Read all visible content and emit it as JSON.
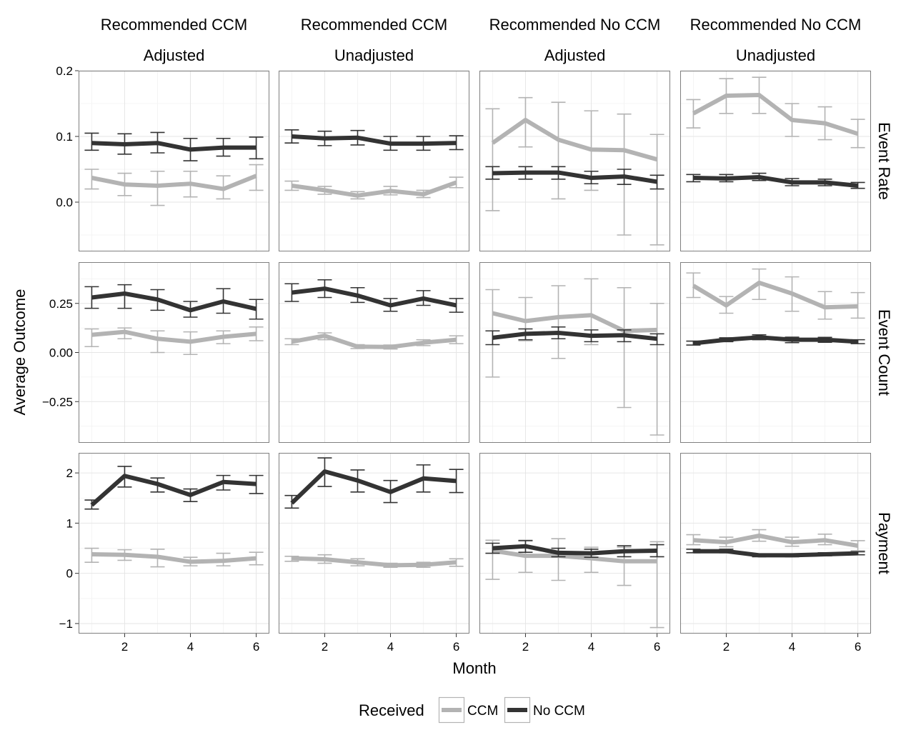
{
  "chart_data": {
    "type": "line",
    "title": "",
    "xlabel": "Month",
    "ylabel": "Average Outcome",
    "x_ticks": [
      2,
      4,
      6
    ],
    "xlim": [
      0.6,
      6.4
    ],
    "grid": true,
    "legend": {
      "title": "Received",
      "position": "bottom",
      "entries": [
        {
          "name": "CCM",
          "color": "#b3b3b3"
        },
        {
          "name": "No CCM",
          "color": "#333333"
        }
      ]
    },
    "columns": [
      {
        "top": "Recommended CCM",
        "bottom": "Adjusted"
      },
      {
        "top": "Recommended CCM",
        "bottom": "Unadjusted"
      },
      {
        "top": "Recommended No CCM",
        "bottom": "Adjusted"
      },
      {
        "top": "Recommended No CCM",
        "bottom": "Unadjusted"
      }
    ],
    "rows": [
      {
        "label": "Event Rate",
        "ylim": [
          -0.075,
          0.2
        ],
        "y_ticks": [
          0.0,
          0.1,
          0.2
        ],
        "y_tick_labels": [
          "0.0",
          "0.1",
          "0.2"
        ]
      },
      {
        "label": "Event Count",
        "ylim": [
          -0.46,
          0.46
        ],
        "y_ticks": [
          -0.25,
          0.0,
          0.25
        ],
        "y_tick_labels": [
          "−0.25",
          "0.00",
          "0.25"
        ]
      },
      {
        "label": "Payment",
        "ylim": [
          -1.2,
          2.4
        ],
        "y_ticks": [
          -1,
          0,
          1,
          2
        ],
        "y_tick_labels": [
          "−1",
          "0",
          "1",
          "2"
        ]
      }
    ],
    "panels": [
      [
        {
          "series": [
            {
              "name": "CCM",
              "x": [
                1,
                2,
                3,
                4,
                5,
                6
              ],
              "y": [
                0.037,
                0.027,
                0.025,
                0.028,
                0.02,
                0.04
              ],
              "lower": [
                0.02,
                0.01,
                -0.005,
                0.008,
                0.005,
                0.018
              ],
              "upper": [
                0.05,
                0.044,
                0.047,
                0.047,
                0.04,
                0.057
              ]
            },
            {
              "name": "No CCM",
              "x": [
                1,
                2,
                3,
                4,
                5,
                6
              ],
              "y": [
                0.09,
                0.088,
                0.09,
                0.08,
                0.083,
                0.083
              ],
              "lower": [
                0.079,
                0.073,
                0.075,
                0.063,
                0.07,
                0.066
              ],
              "upper": [
                0.105,
                0.104,
                0.106,
                0.097,
                0.097,
                0.099
              ]
            }
          ]
        },
        {
          "series": [
            {
              "name": "CCM",
              "x": [
                1,
                2,
                3,
                4,
                5,
                6
              ],
              "y": [
                0.025,
                0.018,
                0.01,
                0.017,
                0.012,
                0.03
              ],
              "lower": [
                0.018,
                0.012,
                0.005,
                0.011,
                0.007,
                0.022
              ],
              "upper": [
                0.032,
                0.024,
                0.016,
                0.024,
                0.018,
                0.038
              ]
            },
            {
              "name": "No CCM",
              "x": [
                1,
                2,
                3,
                4,
                5,
                6
              ],
              "y": [
                0.1,
                0.097,
                0.098,
                0.089,
                0.089,
                0.09
              ],
              "lower": [
                0.09,
                0.086,
                0.087,
                0.079,
                0.079,
                0.08
              ],
              "upper": [
                0.11,
                0.108,
                0.109,
                0.1,
                0.1,
                0.101
              ]
            }
          ]
        },
        {
          "series": [
            {
              "name": "CCM",
              "x": [
                1,
                2,
                3,
                4,
                5,
                6
              ],
              "y": [
                0.09,
                0.125,
                0.095,
                0.08,
                0.079,
                0.065
              ],
              "lower": [
                -0.013,
                0.084,
                0.005,
                0.018,
                -0.05,
                -0.065
              ],
              "upper": [
                0.142,
                0.159,
                0.152,
                0.139,
                0.134,
                0.103
              ]
            },
            {
              "name": "No CCM",
              "x": [
                1,
                2,
                3,
                4,
                5,
                6
              ],
              "y": [
                0.044,
                0.045,
                0.045,
                0.037,
                0.039,
                0.031
              ],
              "lower": [
                0.035,
                0.035,
                0.035,
                0.028,
                0.027,
                0.02
              ],
              "upper": [
                0.054,
                0.054,
                0.054,
                0.047,
                0.05,
                0.041
              ]
            }
          ]
        },
        {
          "series": [
            {
              "name": "CCM",
              "x": [
                1,
                2,
                3,
                4,
                5,
                6
              ],
              "y": [
                0.135,
                0.162,
                0.163,
                0.125,
                0.12,
                0.104
              ],
              "lower": [
                0.113,
                0.135,
                0.135,
                0.1,
                0.095,
                0.083
              ],
              "upper": [
                0.156,
                0.188,
                0.19,
                0.15,
                0.145,
                0.126
              ]
            },
            {
              "name": "No CCM",
              "x": [
                1,
                2,
                3,
                4,
                5,
                6
              ],
              "y": [
                0.037,
                0.036,
                0.038,
                0.03,
                0.03,
                0.025
              ],
              "lower": [
                0.031,
                0.031,
                0.033,
                0.025,
                0.025,
                0.021
              ],
              "upper": [
                0.042,
                0.042,
                0.044,
                0.036,
                0.035,
                0.03
              ]
            }
          ]
        }
      ],
      [
        {
          "series": [
            {
              "name": "CCM",
              "x": [
                1,
                2,
                3,
                4,
                5,
                6
              ],
              "y": [
                0.09,
                0.105,
                0.07,
                0.055,
                0.08,
                0.095
              ],
              "lower": [
                0.03,
                0.07,
                0.0,
                -0.01,
                0.045,
                0.06
              ],
              "upper": [
                0.12,
                0.125,
                0.11,
                0.105,
                0.11,
                0.13
              ]
            },
            {
              "name": "No CCM",
              "x": [
                1,
                2,
                3,
                4,
                5,
                6
              ],
              "y": [
                0.28,
                0.3,
                0.27,
                0.215,
                0.26,
                0.222
              ],
              "lower": [
                0.225,
                0.225,
                0.215,
                0.18,
                0.2,
                0.17
              ],
              "upper": [
                0.335,
                0.345,
                0.32,
                0.26,
                0.325,
                0.27
              ]
            }
          ]
        },
        {
          "series": [
            {
              "name": "CCM",
              "x": [
                1,
                2,
                3,
                4,
                5,
                6
              ],
              "y": [
                0.055,
                0.085,
                0.03,
                0.028,
                0.05,
                0.065
              ],
              "lower": [
                0.04,
                0.065,
                0.02,
                0.018,
                0.035,
                0.045
              ],
              "upper": [
                0.07,
                0.1,
                0.04,
                0.038,
                0.065,
                0.085
              ]
            },
            {
              "name": "No CCM",
              "x": [
                1,
                2,
                3,
                4,
                5,
                6
              ],
              "y": [
                0.305,
                0.325,
                0.29,
                0.24,
                0.275,
                0.24
              ],
              "lower": [
                0.26,
                0.28,
                0.255,
                0.21,
                0.24,
                0.205
              ],
              "upper": [
                0.35,
                0.37,
                0.33,
                0.275,
                0.315,
                0.275
              ]
            }
          ]
        },
        {
          "series": [
            {
              "name": "CCM",
              "x": [
                1,
                2,
                3,
                4,
                5,
                6
              ],
              "y": [
                0.2,
                0.16,
                0.18,
                0.19,
                0.11,
                0.115
              ],
              "lower": [
                -0.125,
                0.06,
                -0.03,
                0.04,
                -0.28,
                -0.42
              ],
              "upper": [
                0.32,
                0.28,
                0.34,
                0.375,
                0.33,
                0.25
              ]
            },
            {
              "name": "No CCM",
              "x": [
                1,
                2,
                3,
                4,
                5,
                6
              ],
              "y": [
                0.075,
                0.095,
                0.1,
                0.085,
                0.088,
                0.07
              ],
              "lower": [
                0.04,
                0.065,
                0.07,
                0.055,
                0.055,
                0.04
              ],
              "upper": [
                0.11,
                0.12,
                0.13,
                0.115,
                0.115,
                0.095
              ]
            }
          ]
        },
        {
          "series": [
            {
              "name": "CCM",
              "x": [
                1,
                2,
                3,
                4,
                5,
                6
              ],
              "y": [
                0.34,
                0.24,
                0.355,
                0.3,
                0.23,
                0.235
              ],
              "lower": [
                0.28,
                0.2,
                0.27,
                0.21,
                0.17,
                0.175
              ],
              "upper": [
                0.405,
                0.285,
                0.425,
                0.385,
                0.31,
                0.305
              ]
            },
            {
              "name": "No CCM",
              "x": [
                1,
                2,
                3,
                4,
                5,
                6
              ],
              "y": [
                0.047,
                0.065,
                0.077,
                0.065,
                0.065,
                0.055
              ],
              "lower": [
                0.038,
                0.055,
                0.065,
                0.05,
                0.052,
                0.045
              ],
              "upper": [
                0.058,
                0.075,
                0.09,
                0.078,
                0.077,
                0.065
              ]
            }
          ]
        }
      ],
      [
        {
          "series": [
            {
              "name": "CCM",
              "x": [
                1,
                2,
                3,
                4,
                5,
                6
              ],
              "y": [
                0.38,
                0.37,
                0.33,
                0.23,
                0.25,
                0.3
              ],
              "lower": [
                0.22,
                0.26,
                0.13,
                0.15,
                0.15,
                0.17
              ],
              "upper": [
                0.5,
                0.47,
                0.48,
                0.32,
                0.4,
                0.42
              ]
            },
            {
              "name": "No CCM",
              "x": [
                1,
                2,
                3,
                4,
                5,
                6
              ],
              "y": [
                1.36,
                1.94,
                1.78,
                1.56,
                1.82,
                1.78
              ],
              "lower": [
                1.28,
                1.72,
                1.62,
                1.43,
                1.66,
                1.59
              ],
              "upper": [
                1.46,
                2.13,
                1.9,
                1.68,
                1.95,
                1.95
              ]
            }
          ]
        },
        {
          "series": [
            {
              "name": "CCM",
              "x": [
                1,
                2,
                3,
                4,
                5,
                6
              ],
              "y": [
                0.3,
                0.28,
                0.22,
                0.16,
                0.17,
                0.22
              ],
              "lower": [
                0.24,
                0.2,
                0.15,
                0.12,
                0.12,
                0.14
              ],
              "upper": [
                0.34,
                0.37,
                0.29,
                0.2,
                0.22,
                0.29
              ]
            },
            {
              "name": "No CCM",
              "x": [
                1,
                2,
                3,
                4,
                5,
                6
              ],
              "y": [
                1.4,
                2.03,
                1.85,
                1.62,
                1.89,
                1.84
              ],
              "lower": [
                1.3,
                1.73,
                1.62,
                1.41,
                1.62,
                1.61
              ],
              "upper": [
                1.55,
                2.3,
                2.06,
                1.85,
                2.16,
                2.07
              ]
            }
          ]
        },
        {
          "series": [
            {
              "name": "CCM",
              "x": [
                1,
                2,
                3,
                4,
                5,
                6
              ],
              "y": [
                0.45,
                0.35,
                0.35,
                0.3,
                0.24,
                0.24
              ],
              "lower": [
                -0.12,
                0.02,
                -0.14,
                0.02,
                -0.24,
                -1.08
              ],
              "upper": [
                0.66,
                0.66,
                0.69,
                0.52,
                0.52,
                0.63
              ]
            },
            {
              "name": "No CCM",
              "x": [
                1,
                2,
                3,
                4,
                5,
                6
              ],
              "y": [
                0.5,
                0.54,
                0.41,
                0.4,
                0.44,
                0.45
              ],
              "lower": [
                0.4,
                0.42,
                0.33,
                0.32,
                0.33,
                0.33
              ],
              "upper": [
                0.6,
                0.65,
                0.5,
                0.48,
                0.55,
                0.57
              ]
            }
          ]
        },
        {
          "series": [
            {
              "name": "CCM",
              "x": [
                1,
                2,
                3,
                4,
                5,
                6
              ],
              "y": [
                0.66,
                0.62,
                0.75,
                0.62,
                0.66,
                0.55
              ],
              "lower": [
                0.57,
                0.53,
                0.64,
                0.54,
                0.57,
                0.45
              ],
              "upper": [
                0.77,
                0.72,
                0.87,
                0.72,
                0.78,
                0.65
              ]
            },
            {
              "name": "No CCM",
              "x": [
                1,
                2,
                3,
                4,
                5,
                6
              ],
              "y": [
                0.44,
                0.44,
                0.36,
                0.36,
                0.38,
                0.4
              ],
              "lower": [
                0.41,
                0.41,
                0.33,
                0.33,
                0.35,
                0.37
              ],
              "upper": [
                0.48,
                0.48,
                0.39,
                0.39,
                0.41,
                0.43
              ]
            }
          ]
        }
      ]
    ]
  }
}
